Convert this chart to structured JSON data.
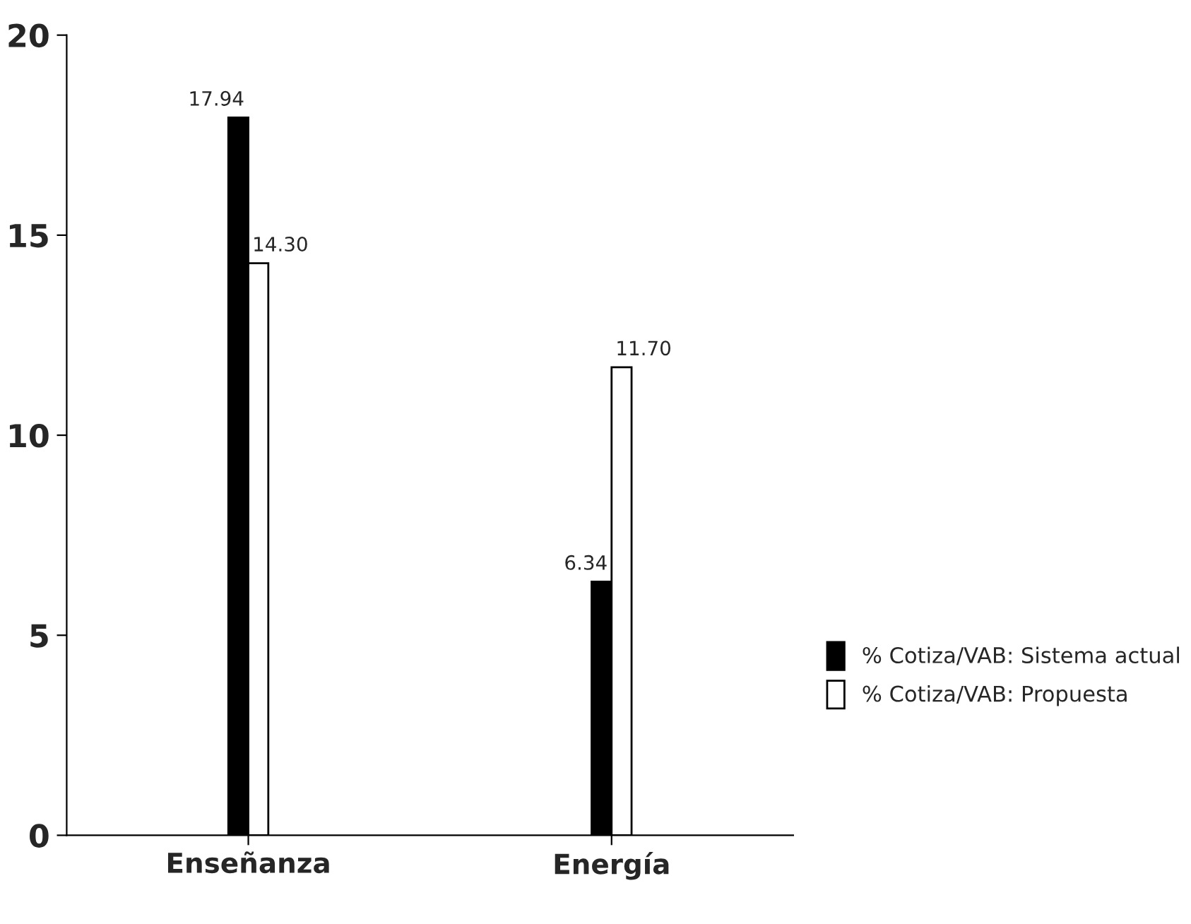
{
  "chart_data": {
    "type": "bar",
    "categories": [
      "Enseñanza",
      "Energía"
    ],
    "series": [
      {
        "name": "% Cotiza/VAB: Sistema actual",
        "color": "#000000",
        "values": [
          17.94,
          6.34
        ],
        "value_labels": [
          "17.94",
          "6.34"
        ]
      },
      {
        "name": "% Cotiza/VAB: Propuesta",
        "color": "#ffffff",
        "values": [
          14.3,
          11.7
        ],
        "value_labels": [
          "14.30",
          "11.70"
        ]
      }
    ],
    "ylim": [
      0,
      20
    ],
    "yticks": [
      0,
      5,
      10,
      15,
      20
    ],
    "grid": false,
    "legend": "right"
  }
}
